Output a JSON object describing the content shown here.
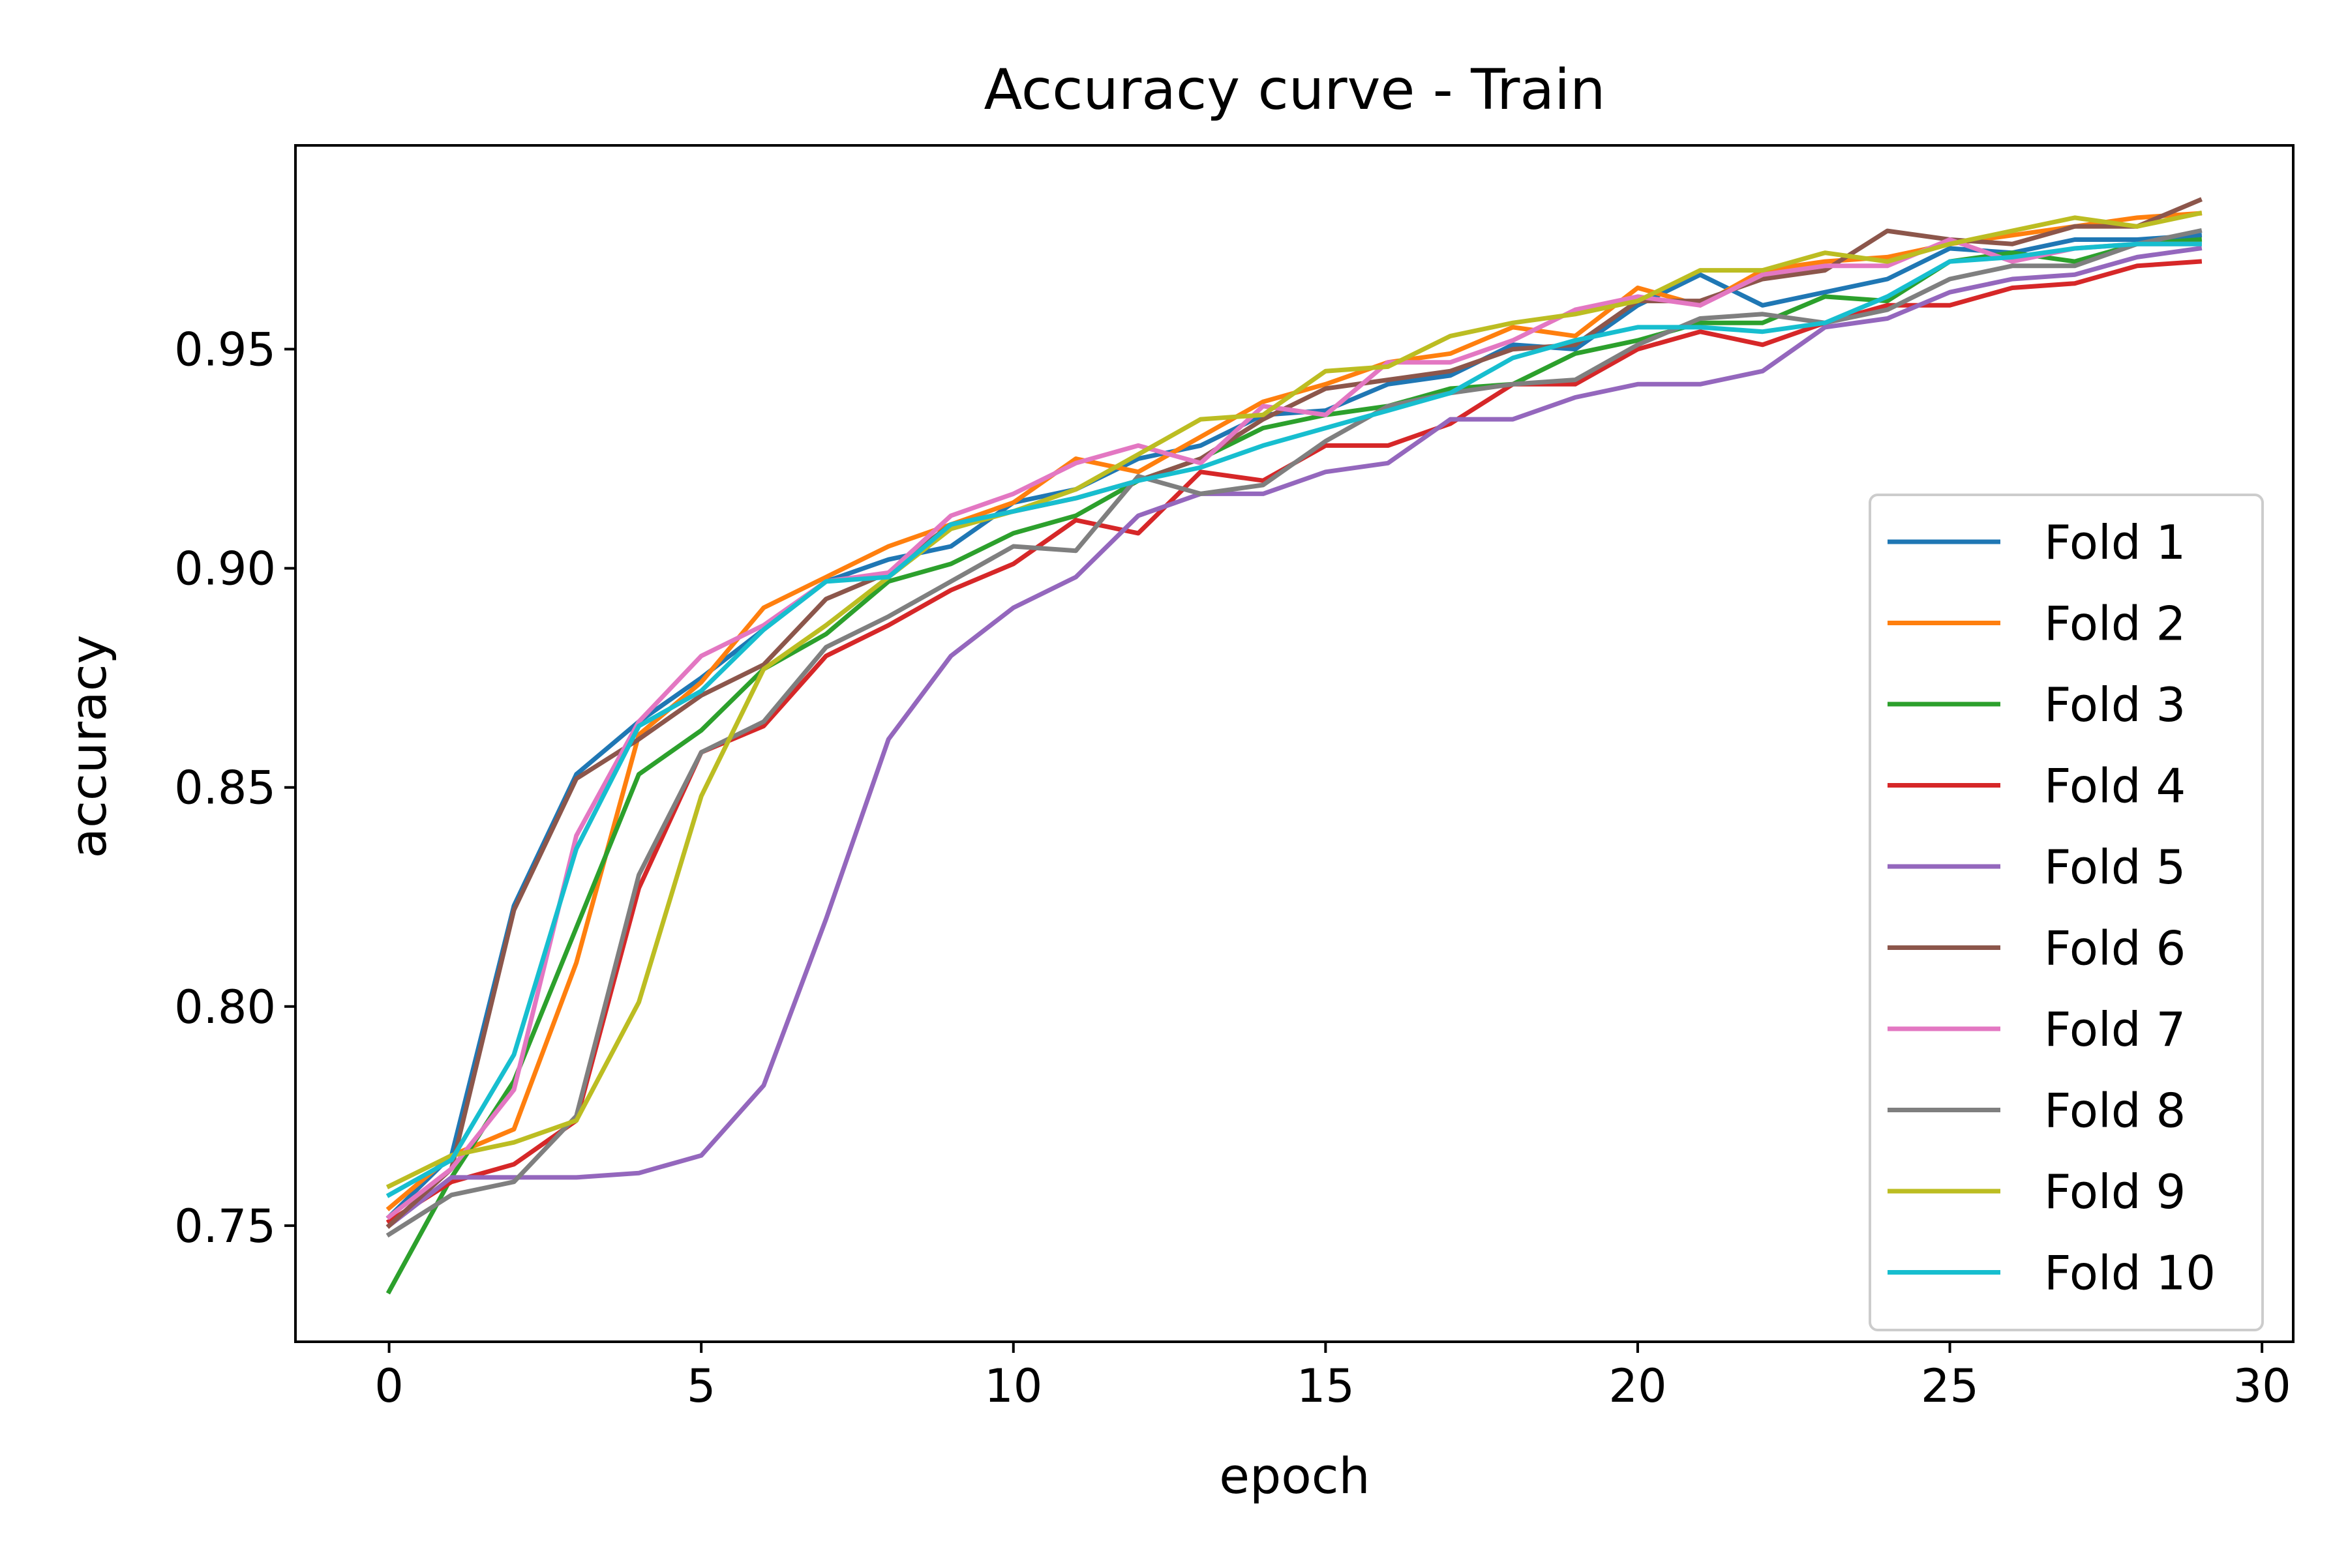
{
  "chart_data": {
    "type": "line",
    "title": "Accuracy curve - Train",
    "xlabel": "epoch",
    "ylabel": "accuracy",
    "xlim": [
      -1.5,
      30.5
    ],
    "ylim": [
      0.7235,
      0.9965
    ],
    "xticks": [
      0,
      5,
      10,
      15,
      20,
      25,
      30
    ],
    "xtick_labels": [
      "0",
      "5",
      "10",
      "15",
      "20",
      "25",
      "30"
    ],
    "yticks": [
      0.75,
      0.8,
      0.85,
      0.9,
      0.95
    ],
    "ytick_labels": [
      "0.75",
      "0.80",
      "0.85",
      "0.90",
      "0.95"
    ],
    "grid": false,
    "legend_position": "lower-right",
    "x": [
      0,
      1,
      2,
      3,
      4,
      5,
      6,
      7,
      8,
      9,
      10,
      11,
      12,
      13,
      14,
      15,
      16,
      17,
      18,
      19,
      20,
      21,
      22,
      23,
      24,
      25,
      26,
      27,
      28,
      29
    ],
    "series": [
      {
        "name": "Fold 1",
        "color": "#1f77b4",
        "values": [
          0.752,
          0.766,
          0.823,
          0.853,
          0.865,
          0.875,
          0.886,
          0.897,
          0.902,
          0.905,
          0.915,
          0.918,
          0.925,
          0.928,
          0.935,
          0.936,
          0.942,
          0.944,
          0.951,
          0.95,
          0.96,
          0.967,
          0.96,
          0.963,
          0.966,
          0.973,
          0.972,
          0.975,
          0.975,
          0.976
        ]
      },
      {
        "name": "Fold 2",
        "color": "#ff7f0e",
        "values": [
          0.754,
          0.766,
          0.772,
          0.81,
          0.862,
          0.874,
          0.891,
          0.898,
          0.905,
          0.91,
          0.915,
          0.925,
          0.922,
          0.93,
          0.938,
          0.942,
          0.947,
          0.949,
          0.955,
          0.953,
          0.964,
          0.96,
          0.968,
          0.97,
          0.971,
          0.974,
          0.976,
          0.978,
          0.98,
          0.981
        ]
      },
      {
        "name": "Fold 3",
        "color": "#2ca02c",
        "values": [
          0.735,
          0.761,
          0.783,
          0.818,
          0.853,
          0.863,
          0.877,
          0.885,
          0.897,
          0.901,
          0.908,
          0.912,
          0.92,
          0.925,
          0.932,
          0.935,
          0.937,
          0.941,
          0.942,
          0.949,
          0.952,
          0.956,
          0.956,
          0.962,
          0.961,
          0.97,
          0.972,
          0.97,
          0.974,
          0.975
        ]
      },
      {
        "name": "Fold 4",
        "color": "#d62728",
        "values": [
          0.751,
          0.76,
          0.764,
          0.774,
          0.827,
          0.858,
          0.864,
          0.88,
          0.887,
          0.895,
          0.901,
          0.911,
          0.908,
          0.922,
          0.92,
          0.928,
          0.928,
          0.933,
          0.942,
          0.942,
          0.95,
          0.954,
          0.951,
          0.956,
          0.96,
          0.96,
          0.964,
          0.965,
          0.969,
          0.97
        ]
      },
      {
        "name": "Fold 5",
        "color": "#9467bd",
        "values": [
          0.75,
          0.761,
          0.761,
          0.761,
          0.762,
          0.766,
          0.782,
          0.82,
          0.861,
          0.88,
          0.891,
          0.898,
          0.912,
          0.917,
          0.917,
          0.922,
          0.924,
          0.934,
          0.934,
          0.939,
          0.942,
          0.942,
          0.945,
          0.955,
          0.957,
          0.963,
          0.966,
          0.967,
          0.971,
          0.973
        ]
      },
      {
        "name": "Fold 6",
        "color": "#8c564b",
        "values": [
          0.75,
          0.763,
          0.822,
          0.852,
          0.861,
          0.871,
          0.878,
          0.893,
          0.899,
          0.91,
          0.913,
          0.916,
          0.92,
          0.925,
          0.934,
          0.941,
          0.943,
          0.945,
          0.95,
          0.951,
          0.961,
          0.961,
          0.966,
          0.968,
          0.977,
          0.975,
          0.974,
          0.978,
          0.978,
          0.984
        ]
      },
      {
        "name": "Fold 7",
        "color": "#e377c2",
        "values": [
          0.752,
          0.763,
          0.781,
          0.839,
          0.865,
          0.88,
          0.887,
          0.897,
          0.899,
          0.912,
          0.917,
          0.924,
          0.928,
          0.924,
          0.937,
          0.935,
          0.947,
          0.947,
          0.952,
          0.959,
          0.962,
          0.96,
          0.967,
          0.969,
          0.969,
          0.975,
          0.97,
          0.973,
          0.974,
          0.974
        ]
      },
      {
        "name": "Fold 8",
        "color": "#7f7f7f",
        "values": [
          0.748,
          0.757,
          0.76,
          0.775,
          0.83,
          0.858,
          0.865,
          0.882,
          0.889,
          0.897,
          0.905,
          0.904,
          0.921,
          0.917,
          0.919,
          0.929,
          0.937,
          0.94,
          0.942,
          0.943,
          0.951,
          0.957,
          0.958,
          0.956,
          0.959,
          0.966,
          0.969,
          0.969,
          0.974,
          0.977
        ]
      },
      {
        "name": "Fold 9",
        "color": "#bcbd22",
        "values": [
          0.759,
          0.766,
          0.769,
          0.774,
          0.801,
          0.848,
          0.877,
          0.887,
          0.898,
          0.909,
          0.913,
          0.918,
          0.926,
          0.934,
          0.935,
          0.945,
          0.946,
          0.953,
          0.956,
          0.958,
          0.961,
          0.968,
          0.968,
          0.972,
          0.97,
          0.974,
          0.977,
          0.98,
          0.978,
          0.981
        ]
      },
      {
        "name": "Fold 10",
        "color": "#17becf",
        "values": [
          0.757,
          0.765,
          0.789,
          0.836,
          0.864,
          0.872,
          0.886,
          0.897,
          0.898,
          0.91,
          0.913,
          0.916,
          0.92,
          0.923,
          0.928,
          0.932,
          0.936,
          0.94,
          0.948,
          0.952,
          0.955,
          0.955,
          0.954,
          0.956,
          0.962,
          0.97,
          0.971,
          0.973,
          0.974,
          0.974
        ]
      }
    ]
  }
}
